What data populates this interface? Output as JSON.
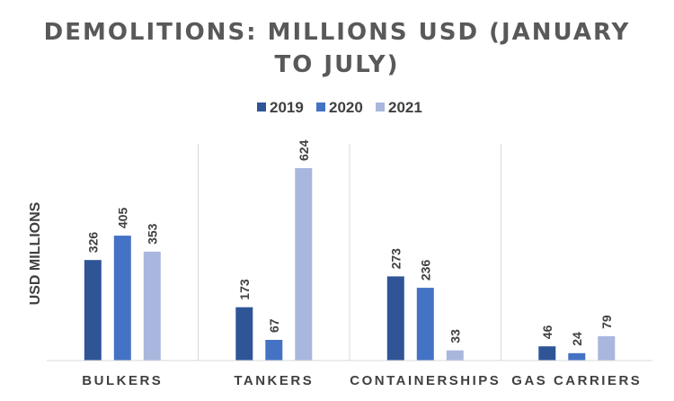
{
  "chart_data": {
    "type": "bar",
    "title_line1": "DEMOLITIONS:  MILLIONS  USD (JANUARY",
    "title_line2": "TO JULY)",
    "ylabel": "USD MILLIONS",
    "xlabel": "",
    "categories": [
      "BULKERS",
      "TANKERS",
      "CONTAINERSHIPS",
      "GAS CARRIERS"
    ],
    "series": [
      {
        "name": "2019",
        "color": "#2f5597",
        "values": [
          326,
          173,
          273,
          46
        ]
      },
      {
        "name": "2020",
        "color": "#4472c4",
        "values": [
          405,
          67,
          236,
          24
        ]
      },
      {
        "name": "2021",
        "color": "#a9b7de",
        "values": [
          353,
          624,
          33,
          79
        ]
      }
    ],
    "ylim": [
      0,
      624
    ],
    "grid": false,
    "legend_position": "top-center",
    "data_labels": true,
    "category_separators": true
  }
}
